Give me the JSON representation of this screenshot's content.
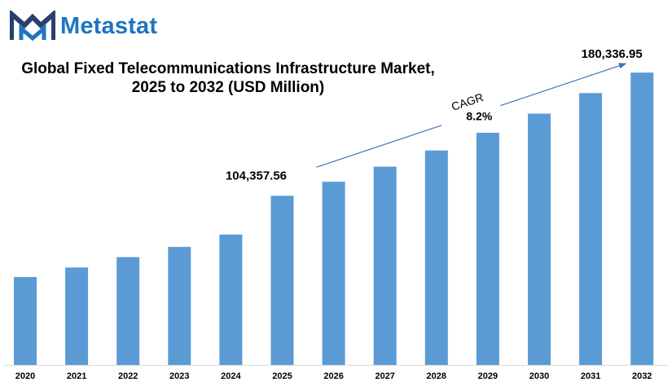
{
  "brand": {
    "name": "Metastat",
    "accent_color": "#1e74c2",
    "icon": "metastat-logo-icon"
  },
  "chart_data": {
    "type": "bar",
    "title_line1": "Global Fixed Telecommunications Infrastructure Market,",
    "title_line2": "2025 to 2032 (USD Million)",
    "xlabel": "",
    "ylabel": "",
    "categories": [
      "2020",
      "2021",
      "2022",
      "2023",
      "2024",
      "2025",
      "2026",
      "2027",
      "2028",
      "2029",
      "2030",
      "2031",
      "2032"
    ],
    "values": [
      54200,
      60100,
      66500,
      72800,
      80400,
      104357.56,
      113000,
      122300,
      132300,
      143200,
      155000,
      167700,
      180336.95
    ],
    "ylim": [
      0,
      200000
    ],
    "bar_color": "#5b9bd5",
    "grid": false,
    "legend": "none",
    "data_labels": [
      {
        "category": "2025",
        "text": "104,357.56"
      },
      {
        "category": "2032",
        "text": "180,336.95"
      }
    ],
    "annotation": {
      "label": "CAGR",
      "value": "8.2%",
      "from_category": "2025",
      "to_category": "2032"
    }
  }
}
